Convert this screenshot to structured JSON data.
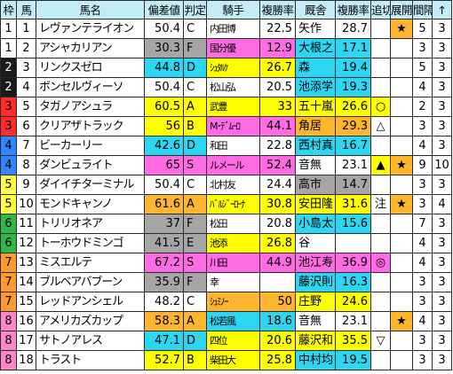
{
  "header": {
    "waku": "枠",
    "uma": "馬",
    "name": "馬名",
    "hensachi": "偏差値",
    "hantei": "判定",
    "kishu": "騎手",
    "fuku_rate_1": "複勝率",
    "kyusha": "厩舎",
    "fuku_rate_2": "複勝率",
    "oikiri": "追切",
    "tenkai": "展開",
    "kankaku": "間隔",
    "sort": "↑"
  },
  "colors": {
    "header_bg": "#c4ecf7",
    "waku": [
      "#ffffff",
      "#1a1a1a",
      "#ff2b2b",
      "#2f86ff",
      "#ffff44",
      "#2fb84a",
      "#ff9a2a",
      "#ff86c9"
    ],
    "gray": "#a6a6a6",
    "yellow": "#ffff00",
    "cyan": "#2dd6f2",
    "pink": "#ff6be3",
    "orange": "#ffb52e",
    "green": "#2dcd2d",
    "blue": "#5b8ff0"
  },
  "rows": [
    {
      "waku": "1",
      "uma": "1",
      "name": "レヴァンテライオン",
      "hensachi": "50.4",
      "hantei": "C",
      "kishu": "内田博",
      "rate1": "22.5",
      "kyusha": "矢作",
      "rate2": "28.7",
      "oikiri": "",
      "tenkai": "★",
      "tenkai_bg": "#ffb52e",
      "kankaku": "5",
      "kankaku2": "3"
    },
    {
      "waku": "1",
      "uma": "2",
      "name": "アシャカリアン",
      "hensachi": "30.3",
      "hantei": "F",
      "hensachi_bg": "#a6a6a6",
      "kishu": "国分優",
      "kishu_bg": "#ff6be3",
      "rate1": "12.9",
      "kyusha": "大根之",
      "kyusha_bg": "#2dd6f2",
      "rate2": "17.1",
      "oikiri": "",
      "tenkai": "",
      "kankaku": "3",
      "kankaku2": "3"
    },
    {
      "waku": "2",
      "uma": "3",
      "name": "リンクスゼロ",
      "hensachi": "44.8",
      "hantei": "D",
      "hensachi_bg": "#2dd6f2",
      "kishu": "ｼｭﾀﾙｹ",
      "kishu_bg": "#ffff00",
      "rate1": "26.7",
      "kyusha": "森",
      "kyusha_bg": "#2dd6f2",
      "rate2": "19.4",
      "oikiri": "",
      "tenkai": "",
      "kankaku": "5",
      "kankaku2": "3"
    },
    {
      "waku": "2",
      "uma": "4",
      "name": "ボンセルヴィーソ",
      "hensachi": "50.4",
      "hantei": "C",
      "kishu": "松山弘",
      "rate1": "20.5",
      "kyusha": "池添学",
      "kyusha_bg": "#2dd6f2",
      "rate2": "19.3",
      "oikiri": "",
      "tenkai": "",
      "kankaku": "4",
      "kankaku2": "3"
    },
    {
      "waku": "3",
      "uma": "5",
      "name": "タガノアシュラ",
      "hensachi": "60.5",
      "hantei": "A",
      "hensachi_bg": "#ffff00",
      "kishu": "武豊",
      "kishu_bg": "#ffff00",
      "rate1": "33",
      "kyusha": "五十嵐",
      "kyusha_bg": "#ffff00",
      "rate2": "26.6",
      "oikiri": "○",
      "oikiri_bg": "#ffff00",
      "tenkai": "",
      "kankaku": "2",
      "kankaku2": "3"
    },
    {
      "waku": "3",
      "uma": "6",
      "name": "クリアザトラック",
      "hensachi": "56",
      "hantei": "B",
      "hensachi_bg": "#ffff00",
      "kishu": "M･ﾃﾞﾑｰﾛ",
      "kishu_bg": "#ff6be3",
      "rate1": "44.1",
      "kyusha": "角居",
      "kyusha_bg": "#ffb52e",
      "rate2": "29.3",
      "oikiri": "△",
      "tenkai": "",
      "kankaku": "3",
      "kankaku2": "3"
    },
    {
      "waku": "4",
      "uma": "7",
      "name": "ビーカーリー",
      "hensachi": "42.6",
      "hantei": "D",
      "hensachi_bg": "#2dd6f2",
      "kishu": "和田",
      "rate1": "22.8",
      "kyusha": "西村真",
      "kyusha_bg": "#2dd6f2",
      "rate2": "16.7",
      "oikiri": "",
      "tenkai": "",
      "kankaku": "4",
      "kankaku2": "3"
    },
    {
      "waku": "4",
      "uma": "8",
      "name": "ダンビュライト",
      "hensachi": "65",
      "hantei": "S",
      "hensachi_bg": "#ff6be3",
      "kishu": "ルメール",
      "kishu_bg": "#ff6be3",
      "rate1": "52.4",
      "kyusha": "音無",
      "rate2": "23.1",
      "oikiri": "▲",
      "oikiri_bg": "#ffff00",
      "tenkai": "★",
      "tenkai_bg": "#ffb52e",
      "kankaku": "9",
      "kankaku2": "10"
    },
    {
      "waku": "5",
      "uma": "9",
      "name": "ダイイチターミナル",
      "hensachi": "50.4",
      "hantei": "C",
      "kishu": "北村友",
      "rate1": "24.4",
      "kyusha": "高市",
      "kyusha_bg": "#a6a6a6",
      "rate2": "14.7",
      "oikiri": "",
      "tenkai": "",
      "kankaku": "3",
      "kankaku2": "3"
    },
    {
      "waku": "5",
      "uma": "10",
      "name": "モンドキャンノ",
      "hensachi": "61.6",
      "hantei": "A",
      "hensachi_bg": "#ffb52e",
      "kishu": "ﾊﾞﾙｼﾞｰﾛｰﾅ",
      "kishu_bg": "#ffff00",
      "rate1": "30.8",
      "kyusha": "安田隆",
      "kyusha_bg": "#ffff00",
      "rate2": "31.6",
      "oikiri": "注",
      "tenkai": "★",
      "tenkai_bg": "#ffb52e",
      "kankaku": "3",
      "kankaku2": "4"
    },
    {
      "waku": "6",
      "uma": "11",
      "name": "トリリオネア",
      "hensachi": "37",
      "hantei": "F",
      "hensachi_bg": "#a6a6a6",
      "kishu": "松田",
      "rate1": "20.8",
      "kyusha": "小島太",
      "kyusha_bg": "#2dd6f2",
      "rate2": "15.6",
      "oikiri": "",
      "tenkai": "",
      "kankaku": "7",
      "kankaku2": "3"
    },
    {
      "waku": "6",
      "uma": "12",
      "name": "トーホウドミンゴ",
      "hensachi": "41.5",
      "hantei": "E",
      "hensachi_bg": "#a6a6a6",
      "kishu": "池添",
      "kishu_bg": "#ffff00",
      "rate1": "26.8",
      "kyusha": "谷",
      "rate2": "",
      "oikiri": "",
      "tenkai": "",
      "kankaku": "4",
      "kankaku2": "3"
    },
    {
      "waku": "7",
      "uma": "13",
      "name": "ミスエルテ",
      "hensachi": "67.2",
      "hantei": "S",
      "hensachi_bg": "#ff6be3",
      "kishu": "川田",
      "kishu_bg": "#ff6be3",
      "rate1": "44.9",
      "kyusha": "池江寿",
      "kyusha_bg": "#ff6be3",
      "rate2": "36.9",
      "oikiri": "◎",
      "oikiri_bg": "#ff6be3",
      "tenkai": "",
      "kankaku": "4",
      "kankaku2": "3"
    },
    {
      "waku": "7",
      "uma": "14",
      "name": "ブルベアバブーン",
      "hensachi": "35.9",
      "hantei": "F",
      "hensachi_bg": "#a6a6a6",
      "kishu": "幸",
      "rate1": "",
      "kyusha": "藤沢則",
      "kyusha_bg": "#2dd6f2",
      "rate2": "16.3",
      "oikiri": "",
      "tenkai": "",
      "kankaku": "3",
      "kankaku2": "3"
    },
    {
      "waku": "7",
      "uma": "15",
      "name": "レッドアンシェル",
      "hensachi": "48.2",
      "hantei": "C",
      "kishu": "ｼｭﾐﾉｰ",
      "kishu_bg": "#ffb52e",
      "rate1": "50",
      "kyusha": "庄野",
      "kyusha_bg": "#ffff00",
      "rate2": "24.6",
      "oikiri": "",
      "tenkai": "",
      "kankaku": "3",
      "kankaku2": "3"
    },
    {
      "waku": "8",
      "uma": "16",
      "name": "アメリカズカップ",
      "hensachi": "58.3",
      "hantei": "A",
      "hensachi_bg": "#ffb52e",
      "kishu": "松若風",
      "kishu_bg": "#2dd6f2",
      "rate1": "18.6",
      "kyusha": "音無",
      "rate2": "23.1",
      "oikiri": "",
      "tenkai": "★",
      "tenkai_bg": "#ffb52e",
      "kankaku": "4",
      "kankaku2": "3"
    },
    {
      "waku": "8",
      "uma": "17",
      "name": "サトノアレス",
      "hensachi": "47.1",
      "hantei": "D",
      "hensachi_bg": "#2dd6f2",
      "kishu": "四位",
      "kishu_bg": "#ffff00",
      "rate1": "20.6",
      "kyusha": "藤沢和",
      "kyusha_bg": "#ffff00",
      "rate2": "35.5",
      "oikiri": "▽",
      "tenkai": "",
      "kankaku": "3",
      "kankaku2": "3"
    },
    {
      "waku": "8",
      "uma": "18",
      "name": "トラスト",
      "hensachi": "52.7",
      "hantei": "B",
      "hensachi_bg": "#ffff00",
      "kishu": "柴田大",
      "kishu_bg": "#ffff00",
      "rate1": "25.8",
      "kyusha": "中村均",
      "kyusha_bg": "#2dd6f2",
      "rate2": "19.5",
      "oikiri": "",
      "tenkai": "",
      "kankaku": "3",
      "kankaku2": "3"
    }
  ]
}
